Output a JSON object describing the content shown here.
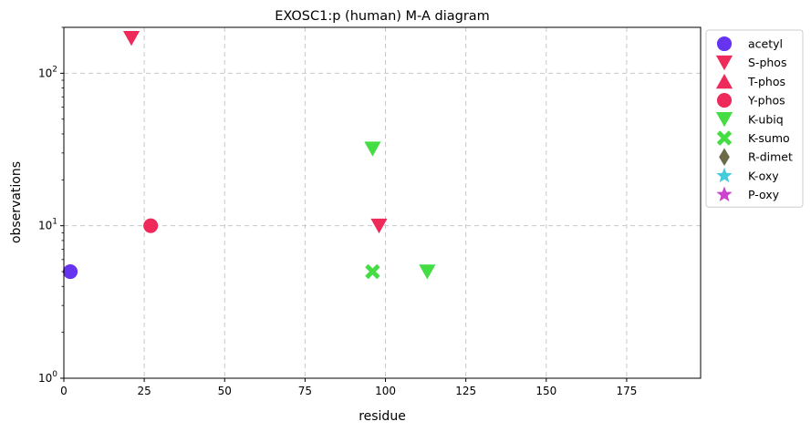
{
  "chart_data": {
    "type": "scatter",
    "title": "EXOSC1:p (human) M-A diagram",
    "xlabel": "residue",
    "ylabel": "observations",
    "xlim": [
      0,
      198
    ],
    "ylim": [
      1,
      200
    ],
    "yscale": "log",
    "grid": true,
    "legend_position": "outside-top-right",
    "xticks": [
      {
        "value": 0,
        "label": "0"
      },
      {
        "value": 25,
        "label": "25"
      },
      {
        "value": 50,
        "label": "50"
      },
      {
        "value": 75,
        "label": "75"
      },
      {
        "value": 100,
        "label": "100"
      },
      {
        "value": 125,
        "label": "125"
      },
      {
        "value": 150,
        "label": "150"
      },
      {
        "value": 175,
        "label": "175"
      }
    ],
    "yticks": [
      {
        "value": 1,
        "base": "10",
        "exp": "0"
      },
      {
        "value": 10,
        "base": "10",
        "exp": "1"
      },
      {
        "value": 100,
        "base": "10",
        "exp": "2"
      }
    ],
    "series": [
      {
        "name": "acetyl",
        "marker": "circle",
        "color": "#6633ee",
        "points": [
          {
            "x": 2,
            "y": 5
          }
        ]
      },
      {
        "name": "S-phos",
        "marker": "triangle-down",
        "color": "#ee2a5a",
        "points": [
          {
            "x": 21,
            "y": 170
          },
          {
            "x": 98,
            "y": 10
          }
        ]
      },
      {
        "name": "T-phos",
        "marker": "triangle-up",
        "color": "#ee2a5a",
        "points": []
      },
      {
        "name": "Y-phos",
        "marker": "circle",
        "color": "#ee2a5a",
        "points": [
          {
            "x": 27,
            "y": 10
          }
        ]
      },
      {
        "name": "K-ubiq",
        "marker": "triangle-down",
        "color": "#44dd44",
        "points": [
          {
            "x": 96,
            "y": 32
          },
          {
            "x": 113,
            "y": 5
          }
        ]
      },
      {
        "name": "K-sumo",
        "marker": "x",
        "color": "#44dd44",
        "points": [
          {
            "x": 96,
            "y": 5
          }
        ]
      },
      {
        "name": "R-dimet",
        "marker": "diamond",
        "color": "#6b6b4a",
        "points": []
      },
      {
        "name": "K-oxy",
        "marker": "star",
        "color": "#44ccdd",
        "points": []
      },
      {
        "name": "P-oxy",
        "marker": "star",
        "color": "#cc44cc",
        "points": []
      }
    ]
  }
}
